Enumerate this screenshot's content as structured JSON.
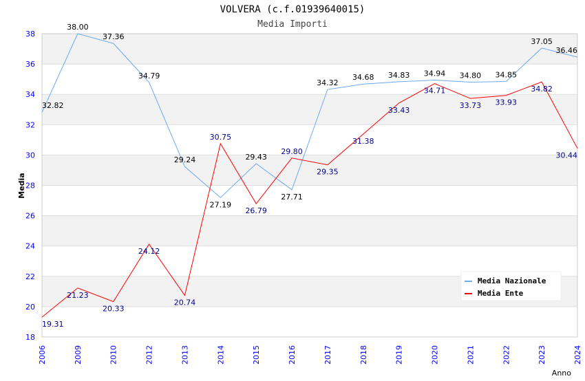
{
  "chart_data": {
    "type": "line",
    "title": "VOLVERA (c.f.01939640015)",
    "subtitle": "Media Importi",
    "xlabel": "Anno",
    "ylabel": "Media",
    "ylim": [
      18,
      38
    ],
    "yticks": [
      18,
      20,
      22,
      24,
      26,
      28,
      30,
      32,
      34,
      36,
      38
    ],
    "categories": [
      "2006",
      "2009",
      "2010",
      "2012",
      "2013",
      "2014",
      "2015",
      "2016",
      "2017",
      "2018",
      "2019",
      "2020",
      "2021",
      "2022",
      "2023",
      "2024"
    ],
    "legend_position": "top-right",
    "grid": true,
    "series": [
      {
        "name": "Media Nazionale",
        "color": "#6aaaf0",
        "label_color": "#000000",
        "values": [
          32.82,
          38.0,
          37.36,
          34.79,
          29.24,
          27.19,
          29.43,
          27.71,
          34.32,
          34.68,
          34.83,
          34.94,
          34.8,
          34.85,
          37.05,
          36.46
        ]
      },
      {
        "name": "Media Ente",
        "color": "#ff0000",
        "label_color": "#00008b",
        "values": [
          19.31,
          21.23,
          20.33,
          24.12,
          20.74,
          30.75,
          26.79,
          29.8,
          29.35,
          31.38,
          33.43,
          34.71,
          33.73,
          33.93,
          34.82,
          30.44
        ]
      }
    ]
  }
}
